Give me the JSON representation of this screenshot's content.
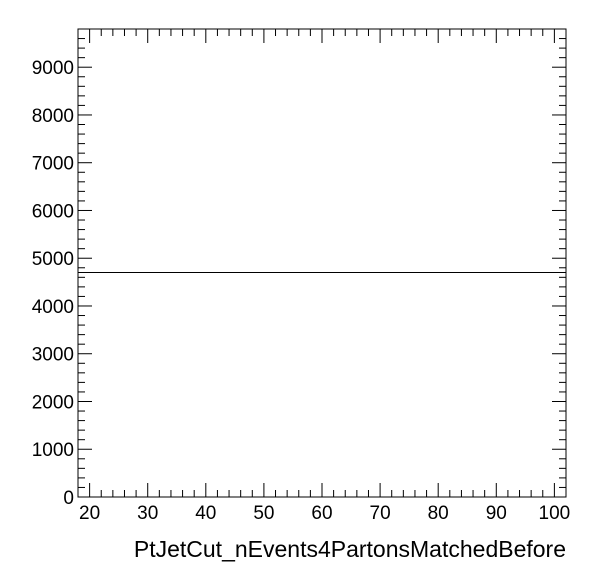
{
  "chart_data": {
    "type": "line",
    "title": "",
    "xlabel": "PtJetCut_nEvents4PartonsMatchedBefore",
    "ylabel": "",
    "xlim": [
      18,
      102
    ],
    "ylim": [
      0,
      9800
    ],
    "x_ticks": [
      20,
      30,
      40,
      50,
      60,
      70,
      80,
      90,
      100
    ],
    "y_ticks": [
      0,
      1000,
      2000,
      3000,
      4000,
      5000,
      6000,
      7000,
      8000,
      9000
    ],
    "grid": false,
    "series": [
      {
        "x": [
          18,
          102
        ],
        "values": [
          4700,
          4700
        ]
      }
    ],
    "colors": {
      "axis": "#000000",
      "line": "#000000",
      "background": "#ffffff"
    }
  }
}
